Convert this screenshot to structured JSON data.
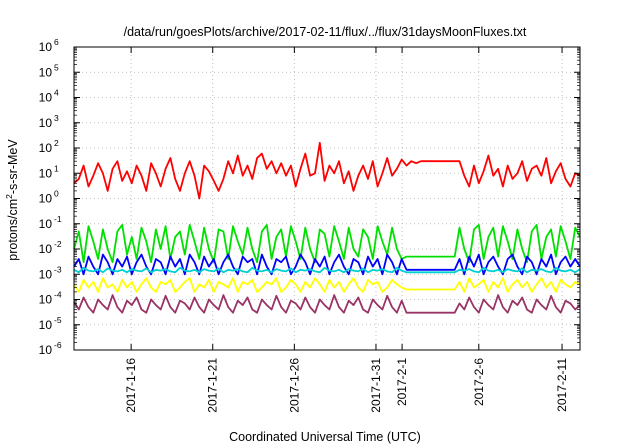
{
  "chart_data": {
    "type": "line",
    "title": "/data/run/goesPlots/archive/2017-02-11/flux/../flux/31daysMoonFluxes.txt",
    "xlabel": "Coordinated Universal Time (UTC)",
    "ylabel_main": "protons/cm",
    "ylabel_sup": "2",
    "ylabel_tail": "-s-sr-MeV",
    "yscale": "log",
    "ylim": [
      1e-06,
      1000000.0
    ],
    "xlim_days": [
      0,
      31
    ],
    "grid": true,
    "y_ticks": [
      {
        "mant": "10",
        "exp": "-6",
        "value": 1e-06
      },
      {
        "mant": "10",
        "exp": "-5",
        "value": 1e-05
      },
      {
        "mant": "10",
        "exp": "-4",
        "value": 0.0001
      },
      {
        "mant": "10",
        "exp": "-3",
        "value": 0.001
      },
      {
        "mant": "10",
        "exp": "-2",
        "value": 0.01
      },
      {
        "mant": "10",
        "exp": "-1",
        "value": 0.1
      },
      {
        "mant": "10",
        "exp": "0",
        "value": 1
      },
      {
        "mant": "10",
        "exp": "1",
        "value": 10
      },
      {
        "mant": "10",
        "exp": "2",
        "value": 100
      },
      {
        "mant": "10",
        "exp": "3",
        "value": 1000
      },
      {
        "mant": "10",
        "exp": "4",
        "value": 10000
      },
      {
        "mant": "10",
        "exp": "5",
        "value": 100000
      },
      {
        "mant": "10",
        "exp": "6",
        "value": 1000000
      }
    ],
    "x_ticks": [
      {
        "label": "2017-1-16",
        "day": 3.5
      },
      {
        "label": "2017-1-21",
        "day": 8.5
      },
      {
        "label": "2017-1-26",
        "day": 13.5
      },
      {
        "label": "2017-1-31",
        "day": 18.5
      },
      {
        "label": "2017-2-1",
        "day": 20.1
      },
      {
        "label": "2017-2-6",
        "day": 24.8
      },
      {
        "label": "2017-2-11",
        "day": 29.9
      }
    ],
    "series": [
      {
        "color": "#ff0000",
        "values": [
          4,
          6,
          20,
          3,
          8,
          25,
          10,
          2,
          15,
          30,
          5,
          12,
          4,
          20,
          8,
          2,
          25,
          10,
          3,
          15,
          40,
          6,
          2,
          10,
          30,
          8,
          1,
          20,
          12,
          5,
          2,
          6,
          30,
          10,
          50,
          8,
          20,
          6,
          40,
          60,
          15,
          30,
          10,
          25,
          8,
          20,
          3,
          15,
          60,
          8,
          10,
          160,
          5,
          20,
          10,
          30,
          4,
          12,
          2,
          8,
          20,
          6,
          30,
          3,
          10,
          40,
          8,
          15,
          35,
          20,
          30,
          25,
          30,
          30,
          30,
          30,
          30,
          30,
          30,
          30,
          30,
          8,
          3,
          20,
          4,
          12,
          50,
          8,
          15,
          3,
          20,
          6,
          10,
          30,
          5,
          15,
          20,
          8,
          40,
          4,
          12,
          25,
          6,
          3,
          10,
          8
        ]
      },
      {
        "color": "#00e000",
        "values": [
          0.01,
          0.05,
          0.003,
          0.08,
          0.02,
          0.004,
          0.06,
          0.01,
          0.003,
          0.05,
          0.09,
          0.006,
          0.03,
          0.004,
          0.07,
          0.02,
          0.003,
          0.06,
          0.01,
          0.08,
          0.004,
          0.03,
          0.05,
          0.006,
          0.09,
          0.02,
          0.004,
          0.07,
          0.01,
          0.003,
          0.06,
          0.05,
          0.004,
          0.08,
          0.02,
          0.006,
          0.07,
          0.01,
          0.003,
          0.05,
          0.09,
          0.004,
          0.03,
          0.06,
          0.005,
          0.08,
          0.02,
          0.004,
          0.07,
          0.01,
          0.003,
          0.06,
          0.04,
          0.005,
          0.08,
          0.02,
          0.004,
          0.07,
          0.01,
          0.005,
          0.06,
          0.03,
          0.004,
          0.08,
          0.02,
          0.006,
          0.07,
          0.01,
          0.004,
          0.005,
          0.005,
          0.005,
          0.005,
          0.005,
          0.005,
          0.005,
          0.005,
          0.005,
          0.005,
          0.005,
          0.07,
          0.01,
          0.003,
          0.06,
          0.09,
          0.004,
          0.03,
          0.07,
          0.005,
          0.08,
          0.02,
          0.004,
          0.06,
          0.01,
          0.003,
          0.05,
          0.09,
          0.004,
          0.03,
          0.06,
          0.005,
          0.08,
          0.02,
          0.004,
          0.07,
          0.03
        ]
      },
      {
        "color": "#0000ff",
        "values": [
          0.002,
          0.004,
          0.001,
          0.005,
          0.002,
          0.001,
          0.006,
          0.003,
          0.001,
          0.004,
          0.002,
          0.005,
          0.001,
          0.003,
          0.006,
          0.002,
          0.001,
          0.004,
          0.003,
          0.001,
          0.005,
          0.002,
          0.004,
          0.001,
          0.006,
          0.003,
          0.001,
          0.005,
          0.002,
          0.004,
          0.001,
          0.003,
          0.006,
          0.002,
          0.001,
          0.005,
          0.003,
          0.004,
          0.001,
          0.006,
          0.002,
          0.001,
          0.004,
          0.003,
          0.005,
          0.001,
          0.002,
          0.006,
          0.003,
          0.001,
          0.004,
          0.002,
          0.005,
          0.001,
          0.003,
          0.006,
          0.002,
          0.001,
          0.004,
          0.003,
          0.001,
          0.005,
          0.002,
          0.004,
          0.001,
          0.006,
          0.003,
          0.001,
          0.004,
          0.0015,
          0.0015,
          0.0015,
          0.0015,
          0.0015,
          0.0015,
          0.0015,
          0.0015,
          0.0015,
          0.0015,
          0.0015,
          0.004,
          0.001,
          0.005,
          0.002,
          0.006,
          0.001,
          0.003,
          0.005,
          0.002,
          0.001,
          0.004,
          0.006,
          0.002,
          0.001,
          0.005,
          0.003,
          0.001,
          0.004,
          0.002,
          0.006,
          0.001,
          0.003,
          0.005,
          0.002,
          0.004,
          0.002
        ]
      },
      {
        "color": "#00d0d0",
        "values": [
          0.0015,
          0.0012,
          0.0018,
          0.0014,
          0.0013,
          0.0016,
          0.0012,
          0.0017,
          0.0014,
          0.0013,
          0.0015,
          0.0012,
          0.0016,
          0.0014,
          0.0013,
          0.0017,
          0.0012,
          0.0015,
          0.0014,
          0.0016,
          0.0013,
          0.0012,
          0.0018,
          0.0014,
          0.0013,
          0.0015,
          0.0012,
          0.0016,
          0.0014,
          0.0013,
          0.0017,
          0.0012,
          0.0015,
          0.0014,
          0.0016,
          0.0013,
          0.0012,
          0.0018,
          0.0014,
          0.0013,
          0.0015,
          0.0012,
          0.0016,
          0.0014,
          0.0013,
          0.0017,
          0.0012,
          0.0015,
          0.0014,
          0.0016,
          0.0013,
          0.0012,
          0.0018,
          0.0014,
          0.0013,
          0.0015,
          0.0012,
          0.0016,
          0.0014,
          0.0013,
          0.0017,
          0.0012,
          0.0015,
          0.0014,
          0.0016,
          0.0013,
          0.0012,
          0.0018,
          0.0014,
          0.0012,
          0.0012,
          0.0012,
          0.0012,
          0.0012,
          0.0012,
          0.0012,
          0.0012,
          0.0012,
          0.0012,
          0.0012,
          0.0015,
          0.0014,
          0.0016,
          0.0013,
          0.0012,
          0.0018,
          0.0014,
          0.0013,
          0.0015,
          0.0012,
          0.0016,
          0.0014,
          0.0013,
          0.0017,
          0.0012,
          0.0015,
          0.0014,
          0.0016,
          0.0013,
          0.0012,
          0.0018,
          0.0014,
          0.0013,
          0.0015,
          0.0012,
          0.0016
        ]
      },
      {
        "color": "#ffff00",
        "values": [
          0.0004,
          0.0002,
          0.0006,
          0.0003,
          0.0005,
          0.0002,
          0.0007,
          0.0003,
          0.0004,
          0.0002,
          0.0006,
          0.0003,
          0.0005,
          0.0002,
          0.0004,
          0.0007,
          0.0003,
          0.0002,
          0.0005,
          0.0004,
          0.0006,
          0.0002,
          0.0003,
          0.0005,
          0.0007,
          0.0002,
          0.0004,
          0.0003,
          0.0006,
          0.0002,
          0.0005,
          0.0004,
          0.0003,
          0.0007,
          0.0002,
          0.0005,
          0.0004,
          0.0006,
          0.0002,
          0.0003,
          0.0005,
          0.0004,
          0.0007,
          0.0002,
          0.0003,
          0.0006,
          0.0004,
          0.0002,
          0.0005,
          0.0003,
          0.0007,
          0.0004,
          0.0002,
          0.0006,
          0.0003,
          0.0005,
          0.0002,
          0.0004,
          0.0007,
          0.0003,
          0.0002,
          0.0006,
          0.0004,
          0.0005,
          0.0002,
          0.0003,
          0.0006,
          0.0004,
          0.0003,
          0.00025,
          0.00025,
          0.00025,
          0.00025,
          0.00025,
          0.00025,
          0.00025,
          0.00025,
          0.00025,
          0.00025,
          0.00025,
          0.0005,
          0.0002,
          0.0007,
          0.0003,
          0.0004,
          0.0006,
          0.0002,
          0.0005,
          0.0003,
          0.0007,
          0.0002,
          0.0004,
          0.0006,
          0.0003,
          0.0005,
          0.0002,
          0.0004,
          0.0007,
          0.0003,
          0.0005,
          0.0002,
          0.0006,
          0.0004,
          0.0003,
          0.0005,
          0.0004
        ]
      },
      {
        "color": "#993366",
        "values": [
          8e-05,
          4e-05,
          0.00012,
          5e-05,
          3e-05,
          0.0001,
          6e-05,
          4e-05,
          0.00015,
          5e-05,
          3e-05,
          9e-05,
          6e-05,
          0.00012,
          4e-05,
          3e-05,
          0.0001,
          6e-05,
          4e-05,
          0.00014,
          5e-05,
          3e-05,
          9e-05,
          7e-05,
          4e-05,
          0.00012,
          5e-05,
          3e-05,
          0.0001,
          6e-05,
          4e-05,
          0.00015,
          5e-05,
          3e-05,
          9e-05,
          6e-05,
          0.00012,
          4e-05,
          3e-05,
          0.0001,
          6e-05,
          4e-05,
          0.00014,
          5e-05,
          3e-05,
          9e-05,
          7e-05,
          4e-05,
          0.00012,
          5e-05,
          3e-05,
          0.0001,
          6e-05,
          4e-05,
          0.00015,
          5e-05,
          3e-05,
          9e-05,
          6e-05,
          0.00012,
          4e-05,
          3e-05,
          0.0001,
          6e-05,
          4e-05,
          0.00014,
          5e-05,
          3e-05,
          9e-05,
          3e-05,
          3e-05,
          3e-05,
          3e-05,
          3e-05,
          3e-05,
          3e-05,
          3e-05,
          3e-05,
          3e-05,
          3e-05,
          7e-05,
          4e-05,
          0.00012,
          5e-05,
          3e-05,
          0.0001,
          6e-05,
          4e-05,
          0.00015,
          5e-05,
          3e-05,
          9e-05,
          6e-05,
          0.00012,
          4e-05,
          3e-05,
          0.0001,
          6e-05,
          4e-05,
          0.00014,
          5e-05,
          3e-05,
          9e-05,
          7e-05,
          4e-05,
          6e-05
        ]
      }
    ]
  }
}
